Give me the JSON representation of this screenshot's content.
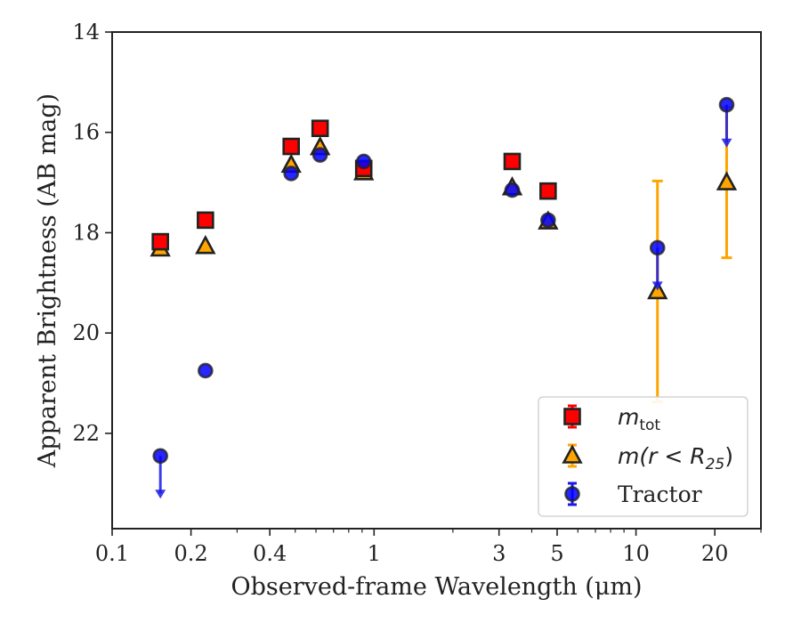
{
  "chart_data": {
    "type": "scatter",
    "title": "",
    "xlabel": "Observed-frame Wavelength (μm)",
    "ylabel": "Apparent Brightness (AB mag)",
    "xscale": "log",
    "xlim": [
      0.1,
      30
    ],
    "ylim": [
      23.9,
      14
    ],
    "y_inverted": true,
    "grid": false,
    "legend_position": "lower-right",
    "x_ticks": [
      {
        "value": 0.1,
        "label": "0.1"
      },
      {
        "value": 0.2,
        "label": "0.2"
      },
      {
        "value": 0.4,
        "label": "0.4"
      },
      {
        "value": 1,
        "label": "1"
      },
      {
        "value": 3,
        "label": "3"
      },
      {
        "value": 5,
        "label": "5"
      },
      {
        "value": 10,
        "label": "10"
      },
      {
        "value": 20,
        "label": "20"
      }
    ],
    "x_minor_ticks": [
      0.3,
      0.5,
      0.6,
      0.7,
      0.8,
      0.9,
      2,
      4,
      6,
      7,
      8,
      9,
      30
    ],
    "y_ticks": [
      {
        "value": 14,
        "label": "14"
      },
      {
        "value": 16,
        "label": "16"
      },
      {
        "value": 18,
        "label": "18"
      },
      {
        "value": 20,
        "label": "20"
      },
      {
        "value": 22,
        "label": "22"
      }
    ],
    "series": [
      {
        "name": "m_tot",
        "legend_main": "m",
        "legend_sub": "tot",
        "marker": "square",
        "color": "#ff0000",
        "edge": "#222222",
        "points": [
          {
            "x": 0.1528,
            "y": 18.18
          },
          {
            "x": 0.2271,
            "y": 17.75
          },
          {
            "x": 0.4826,
            "y": 16.28
          },
          {
            "x": 0.6223,
            "y": 15.92
          },
          {
            "x": 0.9133,
            "y": 16.72
          },
          {
            "x": 3.368,
            "y": 16.58
          },
          {
            "x": 4.618,
            "y": 17.17
          }
        ]
      },
      {
        "name": "m(r < R25)",
        "legend_main": "m(r < R",
        "legend_sub": "25",
        "legend_tail": ")",
        "marker": "triangle",
        "color": "#ffa500",
        "edge": "#222222",
        "points": [
          {
            "x": 0.1528,
            "y": 18.32,
            "err": 0
          },
          {
            "x": 0.2271,
            "y": 18.27,
            "err": 0
          },
          {
            "x": 0.4826,
            "y": 16.65,
            "err": 0
          },
          {
            "x": 0.6223,
            "y": 16.3,
            "err": 0
          },
          {
            "x": 0.9133,
            "y": 16.8,
            "err": 0
          },
          {
            "x": 3.368,
            "y": 17.1,
            "err": 0
          },
          {
            "x": 4.618,
            "y": 17.78,
            "err": 0
          },
          {
            "x": 12.08,
            "y": 19.17,
            "err": 2.2
          },
          {
            "x": 22.19,
            "y": 17.0,
            "err": 1.5
          }
        ]
      },
      {
        "name": "Tractor",
        "marker": "circle",
        "color": "#0000ff",
        "edge": "#222222",
        "points": [
          {
            "x": 0.1528,
            "y": 22.45,
            "upper_limit": true
          },
          {
            "x": 0.2271,
            "y": 20.75
          },
          {
            "x": 0.4826,
            "y": 16.82
          },
          {
            "x": 0.6223,
            "y": 16.45
          },
          {
            "x": 0.9133,
            "y": 16.58
          },
          {
            "x": 3.368,
            "y": 17.15
          },
          {
            "x": 4.618,
            "y": 17.75
          },
          {
            "x": 12.08,
            "y": 18.3,
            "upper_limit": true
          },
          {
            "x": 22.19,
            "y": 15.45,
            "upper_limit": true
          }
        ]
      }
    ]
  }
}
